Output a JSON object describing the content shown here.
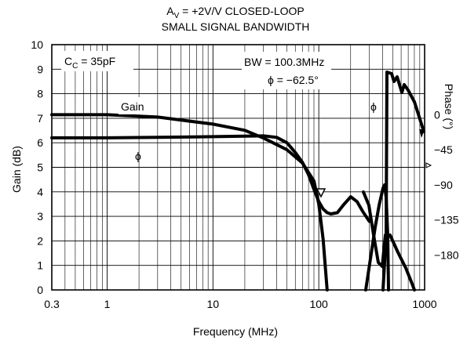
{
  "chart_data": {
    "type": "line",
    "title": "A_V = +2V/V CLOSED-LOOP",
    "title_main": "A",
    "title_sub": "V",
    "title_rest": " = +2V/V CLOSED-LOOP",
    "subtitle": "SMALL SIGNAL BANDWIDTH",
    "xlabel": "Frequency (MHz)",
    "ylabel_left": "Gain  (dB)",
    "ylabel_right": "Phase  (°)",
    "x_scale": "log",
    "xlim": [
      0.3,
      1000
    ],
    "ylim_left": [
      0,
      10
    ],
    "ylim_right": [
      -225,
      90
    ],
    "grid": true,
    "x_ticks": [
      0.3,
      1,
      10,
      100,
      1000
    ],
    "x_tick_labels": [
      "0.3",
      "1",
      "10",
      "100",
      "1000"
    ],
    "y_left_ticks": [
      0,
      1,
      2,
      3,
      4,
      5,
      6,
      7,
      8,
      9,
      10
    ],
    "y_left_tick_labels": [
      "0",
      "1",
      "2",
      "3",
      "4",
      "5",
      "6",
      "7",
      "8",
      "9",
      "10"
    ],
    "y_right_ticks": [
      0,
      -45,
      -90,
      -135,
      -180
    ],
    "y_right_tick_labels": [
      "0",
      "−45",
      "−90",
      "−135",
      "−180"
    ],
    "annotations": {
      "cc_main": "C",
      "cc_sub": "C",
      "cc_rest": " = 35pF",
      "bw": "BW = 100.3MHz",
      "phi_value": "ϕ = −62.5°",
      "gain_label": "Gain",
      "phi_label_left": "ϕ",
      "phi_label_right": "ϕ"
    },
    "series": [
      {
        "name": "Gain",
        "axis": "left",
        "x": [
          0.3,
          1,
          3,
          10,
          20,
          30,
          40,
          50,
          60,
          70,
          80,
          90,
          100,
          110,
          120,
          130,
          150,
          170,
          200,
          230,
          260,
          300
        ],
        "y": [
          6.2,
          6.2,
          6.22,
          6.25,
          6.27,
          6.28,
          6.22,
          6.0,
          5.6,
          5.2,
          4.7,
          4.1,
          3.6,
          3.3,
          3.15,
          3.1,
          3.15,
          3.45,
          3.8,
          3.6,
          3.2,
          2.8
        ]
      },
      {
        "name": "ϕ",
        "axis": "right",
        "x": [
          0.3,
          1,
          3,
          10,
          20,
          30,
          50,
          70,
          90,
          100,
          110,
          120
        ],
        "y": [
          0,
          0,
          -3,
          -12,
          -20,
          -30,
          -45,
          -62,
          -85,
          -115,
          -160,
          -225
        ]
      }
    ]
  }
}
